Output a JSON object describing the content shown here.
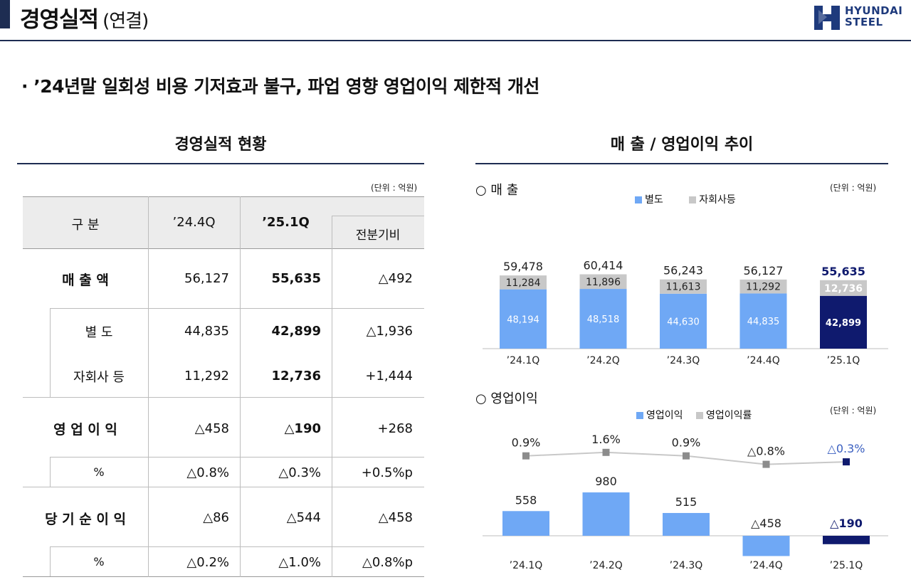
{
  "header": {
    "title": "경영실적",
    "title_sub": "(연결)",
    "logo_line1": "HYUNDAI",
    "logo_line2": "STEEL"
  },
  "headline": "· ’24년말 일회성 비용 기저효과 불구, 파업 영향 영업이익 제한적 개선",
  "table_section": {
    "title": "경영실적 현황",
    "unit": "(단위 : 억원)",
    "headers": {
      "category": "구 분",
      "col1": "’24.4Q",
      "col2": "’25.1Q",
      "col3": "전분기비"
    },
    "rows": [
      {
        "label": "매    출    액",
        "v1": "56,127",
        "v2": "55,635",
        "v3": "△492"
      },
      {
        "label": "별  도",
        "v1": "44,835",
        "v2": "42,899",
        "v3": "△1,936"
      },
      {
        "label": "자회사 등",
        "v1": "11,292",
        "v2": "12,736",
        "v3": "+1,444"
      },
      {
        "label": "영  업  이  익",
        "v1": "△458",
        "v2": "△190",
        "v3": "+268"
      },
      {
        "label": "%",
        "v1": "△0.8%",
        "v2": "△0.3%",
        "v3": "+0.5%p"
      },
      {
        "label": "당 기 순 이 익",
        "v1": "△86",
        "v2": "△544",
        "v3": "△458"
      },
      {
        "label": "%",
        "v1": "△0.2%",
        "v2": "△1.0%",
        "v3": "△0.8%p"
      }
    ]
  },
  "chart_section": {
    "title": "매 출 / 영업이익 추이"
  },
  "chart_data": [
    {
      "type": "bar",
      "title": "○ 매 출",
      "unit": "(단위 : 억원)",
      "categories": [
        "’24.1Q",
        "’24.2Q",
        "’24.3Q",
        "’24.4Q",
        "’25.1Q"
      ],
      "series": [
        {
          "name": "별도",
          "values": [
            48194,
            48518,
            44630,
            44835,
            42899
          ],
          "labels": [
            "48,194",
            "48,518",
            "44,630",
            "44,835",
            "42,899"
          ]
        },
        {
          "name": "자회사등",
          "values": [
            11284,
            11896,
            11613,
            11292,
            12736
          ],
          "labels": [
            "11,284",
            "11,896",
            "11,613",
            "11,292",
            "12,736"
          ]
        }
      ],
      "totals": [
        59478,
        60414,
        56243,
        56127,
        55635
      ],
      "total_labels": [
        "59,478",
        "60,414",
        "56,243",
        "56,127",
        "55,635"
      ],
      "colors": {
        "standalone": "#6fa8f5",
        "subsidiaries": "#c8c8c8",
        "highlight": "#0f1a6e"
      }
    },
    {
      "type": "bar",
      "title": "○ 영업이익",
      "unit": "(단위 : 억원)",
      "categories": [
        "’24.1Q",
        "’24.2Q",
        "’24.3Q",
        "’24.4Q",
        "’25.1Q"
      ],
      "series": [
        {
          "name": "영업이익",
          "values": [
            558,
            980,
            515,
            -458,
            -190
          ],
          "labels": [
            "558",
            "980",
            "515",
            "△458",
            "△190"
          ]
        },
        {
          "name": "영업이익률",
          "values": [
            0.9,
            1.6,
            0.9,
            -0.8,
            -0.3
          ],
          "labels": [
            "0.9%",
            "1.6%",
            "0.9%",
            "△0.8%",
            "△0.3%"
          ]
        }
      ],
      "colors": {
        "bar": "#6fa8f5",
        "line": "#c8c8c8",
        "marker": "#8c8c8c",
        "highlight": "#0f1a6e"
      }
    }
  ]
}
